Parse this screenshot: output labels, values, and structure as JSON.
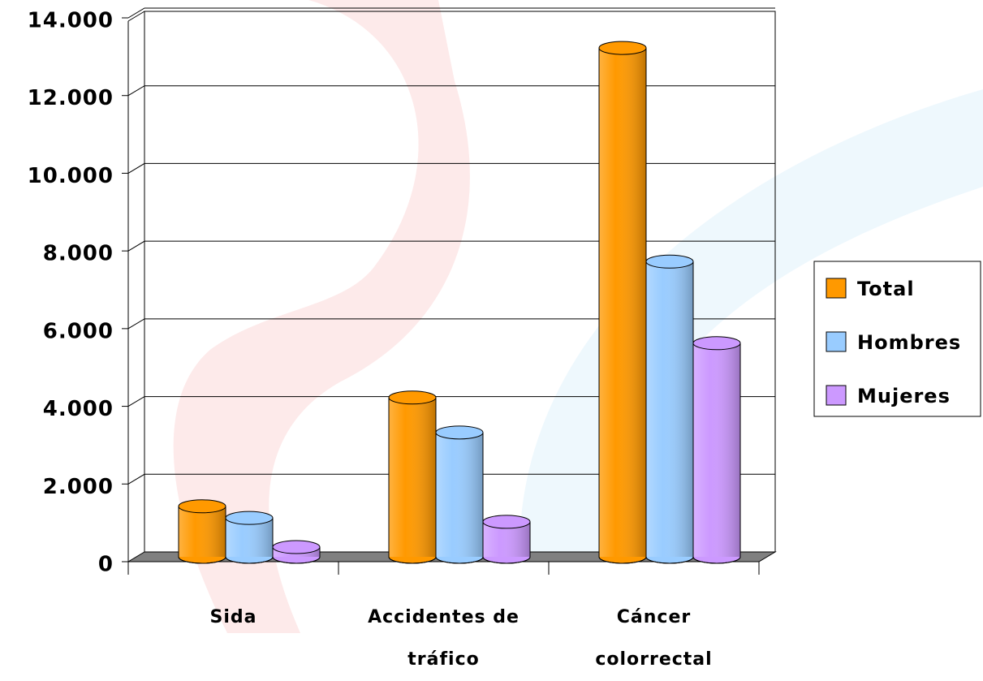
{
  "chart_data": {
    "type": "bar3d",
    "categories": [
      "Sida",
      "Accidentes de tráfico",
      "Cáncer colorrectal"
    ],
    "series": [
      {
        "name": "Total",
        "color": "#ff9900",
        "values": [
          1300,
          4100,
          13100
        ]
      },
      {
        "name": "Hombres",
        "color": "#99ccff",
        "values": [
          1000,
          3200,
          7600
        ]
      },
      {
        "name": "Mujeres",
        "color": "#cc99ff",
        "values": [
          250,
          900,
          5500
        ]
      }
    ],
    "ylim": [
      0,
      14000
    ],
    "yticks": [
      0,
      {
        "value": 2000,
        "label": "2.000"
      },
      {
        "value": 4000,
        "label": "4.000"
      },
      {
        "value": 6000,
        "label": "6.000"
      },
      {
        "value": 8000,
        "label": "8.000"
      },
      {
        "value": 10000,
        "label": "10.000"
      },
      {
        "value": 12000,
        "label": "12.000"
      },
      {
        "value": 14000,
        "label": "14.000"
      }
    ],
    "grid": true,
    "legend": "right"
  }
}
